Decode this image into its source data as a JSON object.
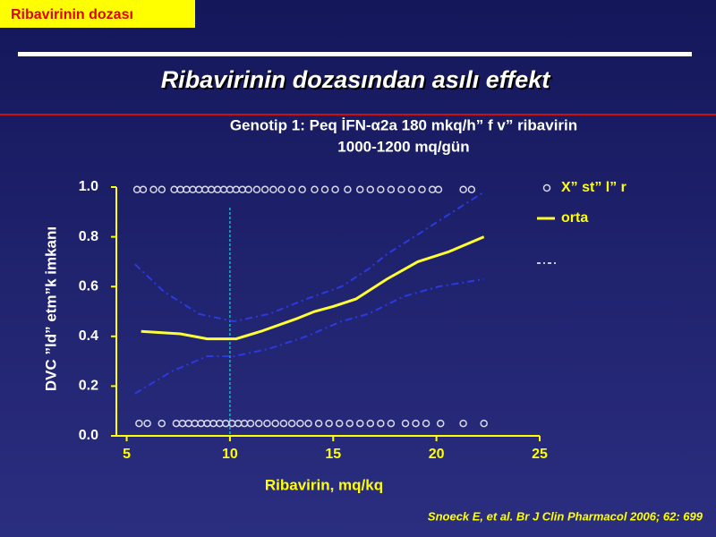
{
  "slide": {
    "tag": "Ribavirinin dozası",
    "title": "Ribavirinin dozasından asılı effekt",
    "citation": "Snoeck E, et al. Br J Clin Pharmacol 2006; 62: 699"
  },
  "chart_data": {
    "type": "line",
    "title": "Genotip 1: Peq İFN-α2a 180 mkq/h” f v”  ribavirin",
    "subtitle": "1000-1200 mq/gün",
    "x_label": "Ribavirin, mq/kq",
    "y_label": "DVC ”ld” etm”k imkanı",
    "xlim": [
      4.5,
      25
    ],
    "xticks": [
      5,
      10,
      15,
      20,
      25
    ],
    "ylim": [
      0,
      1
    ],
    "yticks": [
      {
        "value": 0,
        "label": "0.0"
      },
      0.2,
      0.4,
      0.6,
      0.8,
      {
        "value": 1,
        "label": "1.0"
      }
    ],
    "vline_x": 10,
    "series": [
      {
        "name": "X” st” l” r",
        "kind": "scatter",
        "color": "#d8d8e8",
        "x": [
          5.5,
          5.8,
          6.3,
          6.7,
          7.3,
          7.6,
          7.9,
          8.2,
          8.5,
          8.8,
          9.1,
          9.4,
          9.7,
          10.0,
          10.3,
          10.6,
          10.9,
          11.3,
          11.7,
          12.1,
          12.5,
          13.0,
          13.5,
          14.1,
          14.6,
          15.1,
          15.7,
          16.3,
          16.8,
          17.3,
          17.8,
          18.3,
          18.8,
          19.3,
          19.8,
          20.1,
          21.3,
          21.7,
          5.6,
          6.0,
          6.7,
          7.4,
          7.7,
          8.0,
          8.3,
          8.6,
          8.9,
          9.2,
          9.5,
          9.8,
          10.1,
          10.4,
          10.7,
          11.0,
          11.4,
          11.8,
          12.2,
          12.6,
          13.0,
          13.4,
          13.8,
          14.3,
          14.8,
          15.3,
          15.8,
          16.3,
          16.8,
          17.3,
          17.8,
          18.5,
          19.0,
          19.5,
          20.2,
          21.3,
          22.3
        ],
        "values": [
          0.99,
          0.99,
          0.99,
          0.99,
          0.99,
          0.99,
          0.99,
          0.99,
          0.99,
          0.99,
          0.99,
          0.99,
          0.99,
          0.99,
          0.99,
          0.99,
          0.99,
          0.99,
          0.99,
          0.99,
          0.99,
          0.99,
          0.99,
          0.99,
          0.99,
          0.99,
          0.99,
          0.99,
          0.99,
          0.99,
          0.99,
          0.99,
          0.99,
          0.99,
          0.99,
          0.99,
          0.99,
          0.99,
          0.05,
          0.05,
          0.05,
          0.05,
          0.05,
          0.05,
          0.05,
          0.05,
          0.05,
          0.05,
          0.05,
          0.05,
          0.05,
          0.05,
          0.05,
          0.05,
          0.05,
          0.05,
          0.05,
          0.05,
          0.05,
          0.05,
          0.05,
          0.05,
          0.05,
          0.05,
          0.05,
          0.05,
          0.05,
          0.05,
          0.05,
          0.05,
          0.05,
          0.05,
          0.05,
          0.05,
          0.05
        ]
      },
      {
        "name": "orta",
        "kind": "line",
        "color": "#ffff33",
        "x": [
          5.7,
          7.6,
          8.9,
          10.3,
          11.5,
          13.2,
          14.1,
          15.0,
          16.1,
          17.6,
          19.1,
          20.6,
          22.3
        ],
        "values": [
          0.42,
          0.41,
          0.39,
          0.39,
          0.42,
          0.47,
          0.5,
          0.52,
          0.55,
          0.63,
          0.7,
          0.74,
          0.8
        ]
      },
      {
        "kind": "dashed",
        "color": "#2a3ae0",
        "x": [
          5.4,
          6.8,
          8.5,
          10.2,
          11.9,
          13.7,
          15.4,
          16.7,
          17.6,
          19.3,
          20.6,
          22.3
        ],
        "values": [
          0.69,
          0.58,
          0.49,
          0.46,
          0.49,
          0.55,
          0.6,
          0.67,
          0.73,
          0.82,
          0.89,
          0.98
        ]
      },
      {
        "kind": "dashed",
        "color": "#2a3ae0",
        "x": [
          5.4,
          7.2,
          8.9,
          10.2,
          11.9,
          13.7,
          15.4,
          16.7,
          18.4,
          20.1,
          22.3
        ],
        "values": [
          0.17,
          0.26,
          0.32,
          0.32,
          0.35,
          0.4,
          0.46,
          0.49,
          0.56,
          0.6,
          0.63
        ]
      }
    ]
  }
}
